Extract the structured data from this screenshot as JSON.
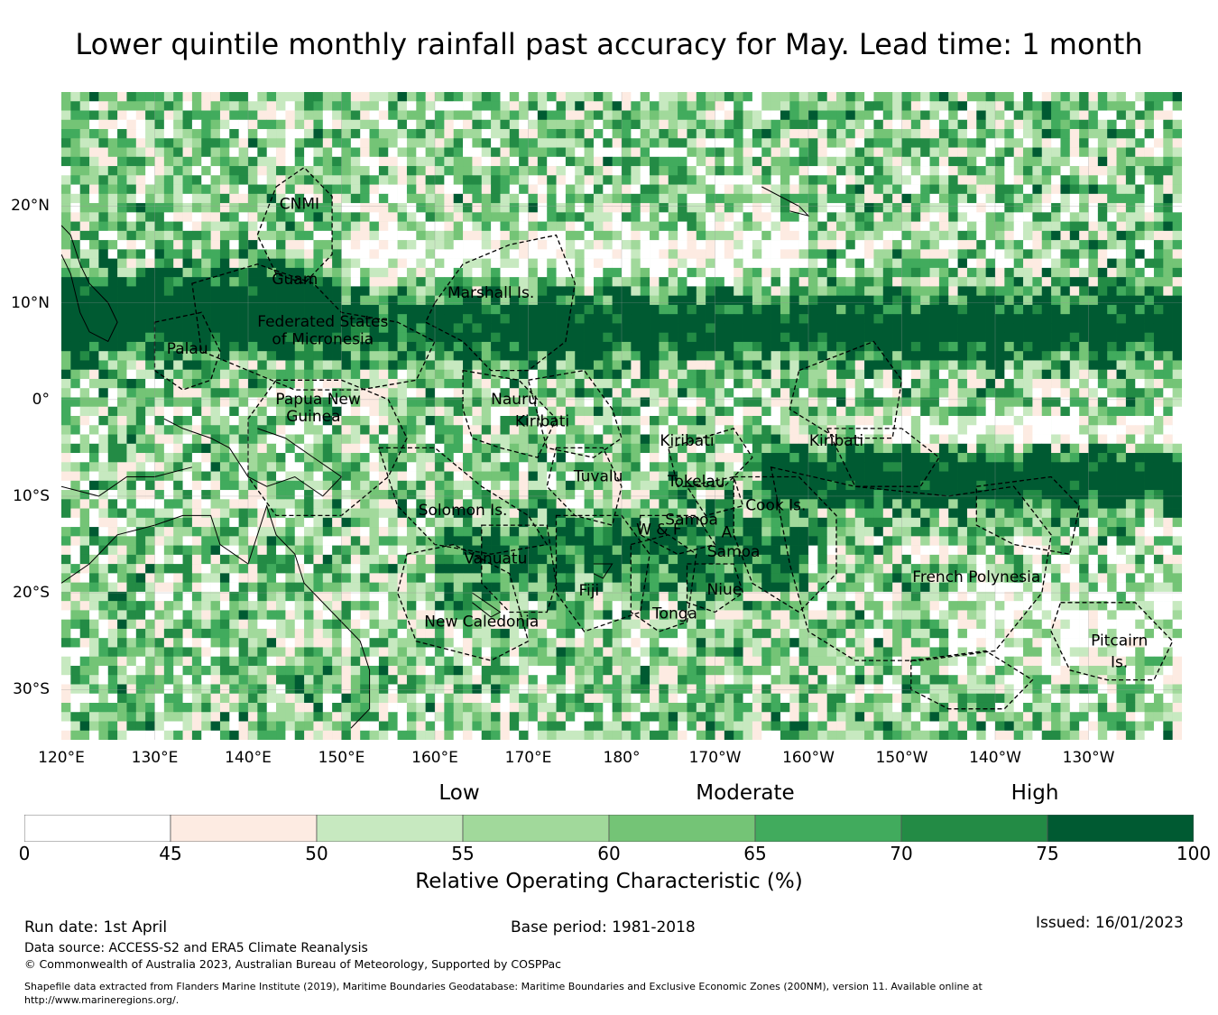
{
  "title": "Lower quintile monthly rainfall past accuracy for May. Lead time: 1 month",
  "map": {
    "lat_ticks": [
      "20°N",
      "10°N",
      "0°",
      "10°S",
      "20°S",
      "30°S"
    ],
    "lon_ticks": [
      "120°E",
      "130°E",
      "140°E",
      "150°E",
      "160°E",
      "170°E",
      "180°",
      "170°W",
      "160°W",
      "150°W",
      "140°W",
      "130°W"
    ],
    "regions": [
      "CNMI",
      "Guam",
      "Marshall Is.",
      "Palau",
      "Federated States",
      "of Micronesia",
      "Papua New",
      "Guinea",
      "Nauru",
      "Kiribati",
      "Kiribati",
      "Kiribati",
      "Tuvalu",
      "Tokelau",
      "Cook Is.",
      "Solomon Is.",
      "W & F",
      "Samoa",
      "A.",
      "Samoa",
      "Vanuatu",
      "Fiji",
      "Niue",
      "Tonga",
      "French Polynesia",
      "New Caledonia",
      "Pitcairn",
      "Is."
    ]
  },
  "legend": {
    "categories": [
      "Low",
      "Moderate",
      "High"
    ],
    "bins": [
      0,
      45,
      50,
      55,
      60,
      65,
      70,
      75,
      100
    ],
    "tick_labels": [
      "0",
      "45",
      "50",
      "55",
      "60",
      "65",
      "70",
      "75",
      "100"
    ],
    "colors": [
      "#ffffff",
      "#fdebe2",
      "#c7e9c0",
      "#a1d99b",
      "#74c476",
      "#41ab5d",
      "#238b45",
      "#005a32"
    ],
    "label": "Relative Operating Characteristic (%)"
  },
  "footer": {
    "run_date": "Run date: 1st April",
    "base_period": "Base period: 1981-2018",
    "issued": "Issued: 16/01/2023",
    "data_source": "Data source: ACCESS-S2 and ERA5 Climate Reanalysis",
    "copyright": "© Commonwealth of Australia 2023, Australian Bureau of Meteorology, Supported by COSPPac",
    "shapefile": "Shapefile data extracted from Flanders Marine Institute (2019), Maritime Boundaries Geodatabase: Maritime Boundaries and Exclusive Economic Zones (200NM), version 11. Available online at",
    "url": "http://www.marineregions.org/."
  }
}
